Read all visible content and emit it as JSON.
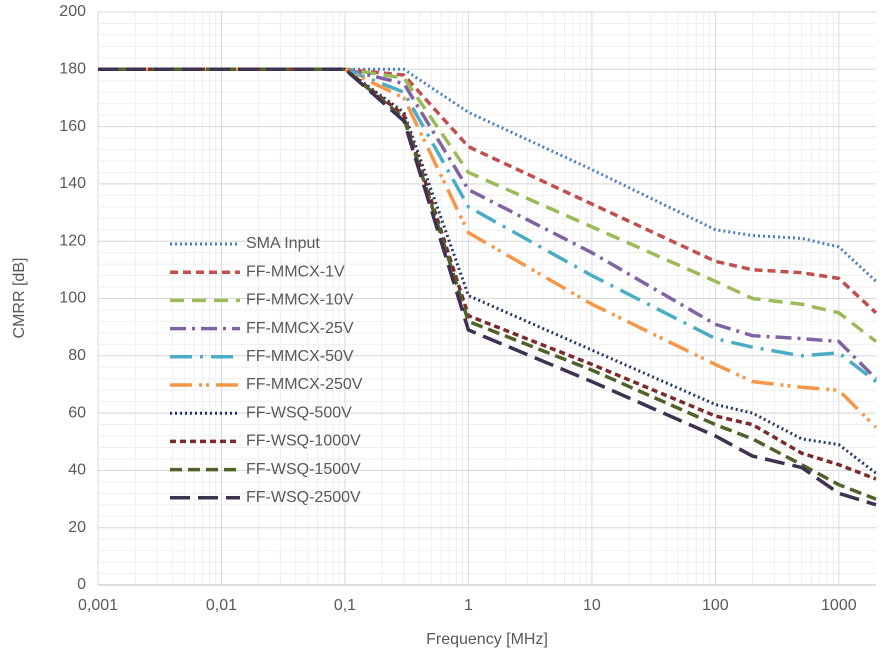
{
  "chart_data": {
    "type": "line",
    "x_label": "Frequency [MHz]",
    "y_label": "CMRR [dB]",
    "x": [
      0.001,
      0.1,
      0.3,
      1,
      10,
      100,
      200,
      500,
      1000,
      2000
    ],
    "xscale": "log",
    "xlim": [
      0.001,
      2000
    ],
    "xticks": [
      {
        "value": 0.001,
        "label": "0,001"
      },
      {
        "value": 0.01,
        "label": "0,01"
      },
      {
        "value": 0.1,
        "label": "0,1"
      },
      1,
      10,
      100,
      1000
    ],
    "ylim": [
      0,
      200
    ],
    "yticks": [
      0,
      20,
      40,
      60,
      80,
      100,
      120,
      140,
      160,
      180,
      200
    ],
    "grid": true,
    "legend": "left",
    "series": [
      {
        "name": "SMA Input",
        "color": "#4a7ebb",
        "values": [
          180,
          180,
          180,
          165,
          145,
          124,
          122,
          121,
          118,
          106
        ]
      },
      {
        "name": "FF-MMCX-1V",
        "color": "#c0504d",
        "values": [
          180,
          180,
          178,
          153,
          133,
          113,
          110,
          109,
          107,
          95
        ]
      },
      {
        "name": "FF-MMCX-10V",
        "color": "#9bbb59",
        "values": [
          180,
          180,
          177,
          144,
          125,
          106,
          100,
          98,
          95,
          85
        ]
      },
      {
        "name": "FF-MMCX-25V",
        "color": "#8064a2",
        "values": [
          180,
          180,
          175,
          138,
          116,
          91,
          87,
          86,
          85,
          72
        ]
      },
      {
        "name": "FF-MMCX-50V",
        "color": "#4bacc6",
        "values": [
          180,
          180,
          172,
          132,
          108,
          86,
          83,
          80,
          81,
          71
        ]
      },
      {
        "name": "FF-MMCX-250V",
        "color": "#f79646",
        "values": [
          180,
          180,
          170,
          123,
          98,
          77,
          71,
          69,
          68,
          55
        ]
      },
      {
        "name": "FF-WSQ-500V",
        "color": "#1f3864",
        "values": [
          180,
          180,
          165,
          101,
          82,
          63,
          60,
          51,
          49,
          39
        ]
      },
      {
        "name": "FF-WSQ-1000V",
        "color": "#7b2c2a",
        "values": [
          180,
          180,
          164,
          94,
          77,
          59,
          56,
          46,
          42,
          37
        ]
      },
      {
        "name": "FF-WSQ-1500V",
        "color": "#4f6228",
        "values": [
          180,
          180,
          163,
          92,
          75,
          56,
          51,
          42,
          35,
          30
        ]
      },
      {
        "name": "FF-WSQ-2500V",
        "color": "#3f3151",
        "values": [
          180,
          180,
          162,
          89,
          71,
          52,
          45,
          41,
          32,
          28
        ]
      }
    ]
  }
}
